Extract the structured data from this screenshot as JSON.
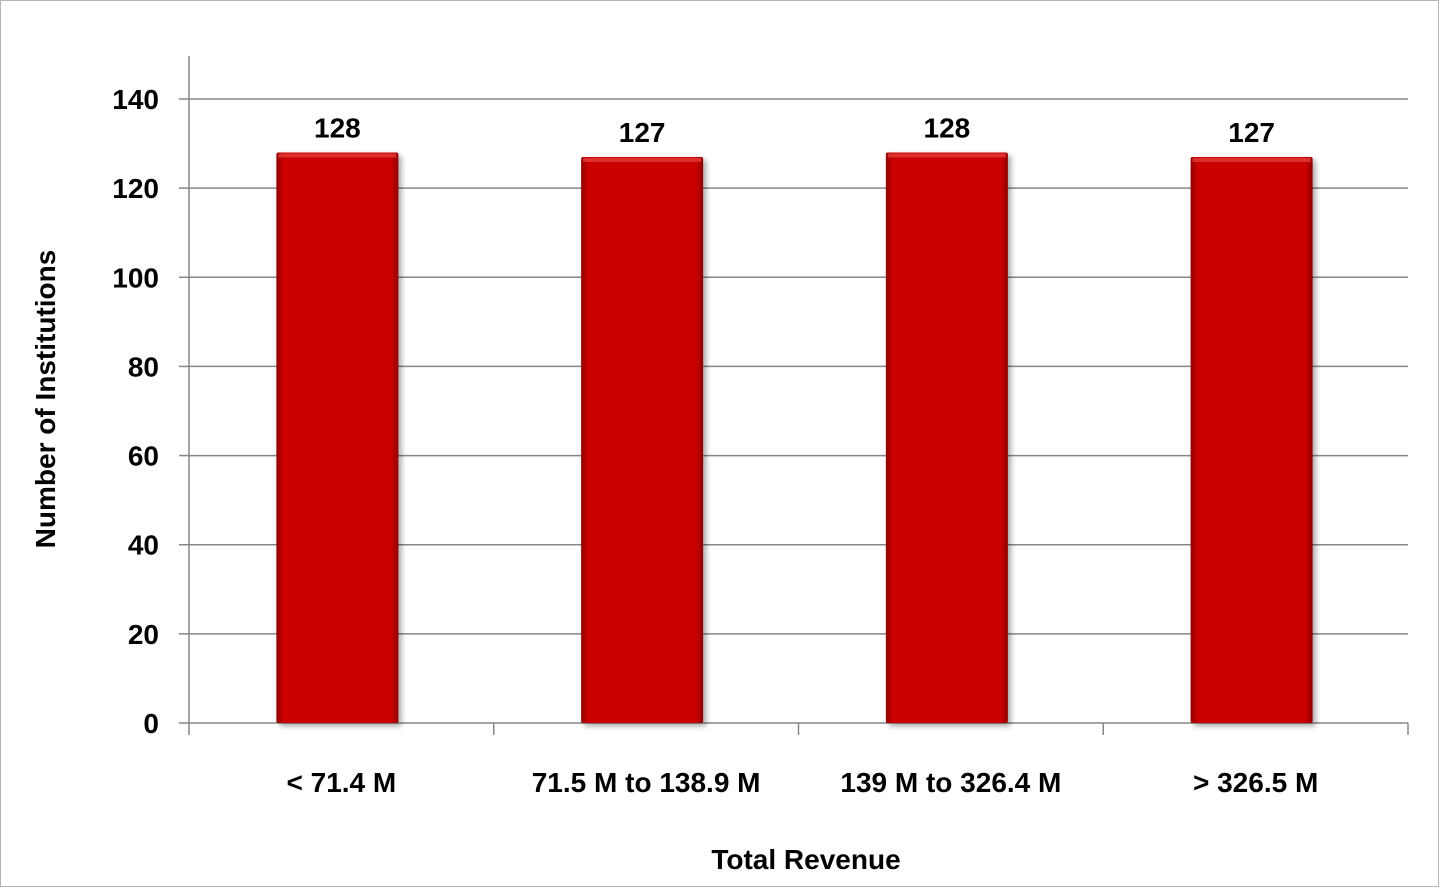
{
  "chart_data": {
    "type": "bar",
    "categories": [
      "< 71.4 M",
      "71.5 M to 138.9 M",
      "139 M to 326.4 M",
      "> 326.5 M"
    ],
    "values": [
      128,
      127,
      128,
      127
    ],
    "data_labels": [
      "128",
      "127",
      "128",
      "127"
    ],
    "title": "",
    "xlabel": "Total Revenue",
    "ylabel": "Number of Institutions",
    "ylim": [
      0,
      140
    ],
    "yticks": [
      0,
      20,
      40,
      60,
      80,
      100,
      120,
      140
    ],
    "ytick_labels": [
      "0",
      "20",
      "40",
      "60",
      "80",
      "100",
      "120",
      "140"
    ],
    "grid": true,
    "legend": "none",
    "colors": {
      "bar": "#cc0000",
      "bar_highlight": "#e23b3b",
      "bar_shadow": "#8f0000",
      "gridline": "#868686",
      "axis": "#868686"
    }
  }
}
